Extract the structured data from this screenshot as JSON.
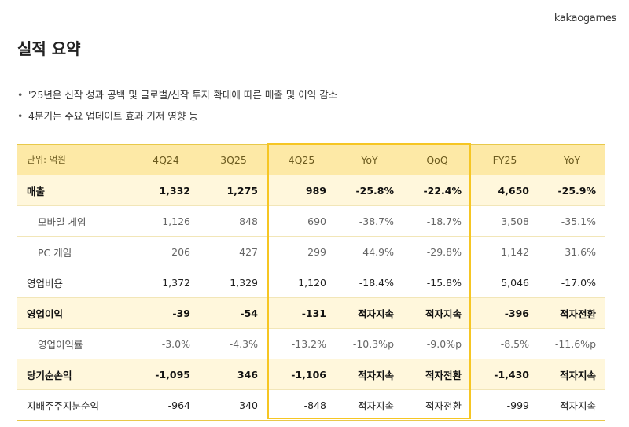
{
  "header": {
    "logo": "kakaogames",
    "title": "실적 요약"
  },
  "bullets": [
    "'25년은 신작 성과 공백 및 글로벌/신작 투자 확대에 따른 매출 및 이익 감소",
    "4분기는 주요 업데이트 효과 기저 영향 등"
  ],
  "table": {
    "header": [
      "단위: 억원",
      "4Q24",
      "3Q25",
      "4Q25",
      "YoY",
      "QoQ",
      "FY25",
      "YoY"
    ],
    "rows": [
      [
        "매출",
        "1,332",
        "1,275",
        "989",
        "-25.8%",
        "-22.4%",
        "4,650",
        "-25.9%"
      ],
      [
        "모바일 게임",
        "1,126",
        "848",
        "690",
        "-38.7%",
        "-18.7%",
        "3,508",
        "-35.1%"
      ],
      [
        "PC 게임",
        "206",
        "427",
        "299",
        "44.9%",
        "-29.8%",
        "1,142",
        "31.6%"
      ],
      [
        "영업비용",
        "1,372",
        "1,329",
        "1,120",
        "-18.4%",
        "-15.8%",
        "5,046",
        "-17.0%"
      ],
      [
        "영업이익",
        "-39",
        "-54",
        "-131",
        "적자지속",
        "적자지속",
        "-396",
        "적자전환"
      ],
      [
        "영업이익률",
        "-3.0%",
        "-4.3%",
        "-13.2%",
        "-10.3%p",
        "-9.0%p",
        "-8.5%",
        "-11.6%p"
      ],
      [
        "당기순손익",
        "-1,095",
        "346",
        "-1,106",
        "적자지속",
        "적자전환",
        "-1,430",
        "적자지속"
      ],
      [
        "지배주주지분순익",
        "-964",
        "340",
        "-848",
        "적자지속",
        "적자전환",
        "-999",
        "적자지속"
      ]
    ]
  }
}
